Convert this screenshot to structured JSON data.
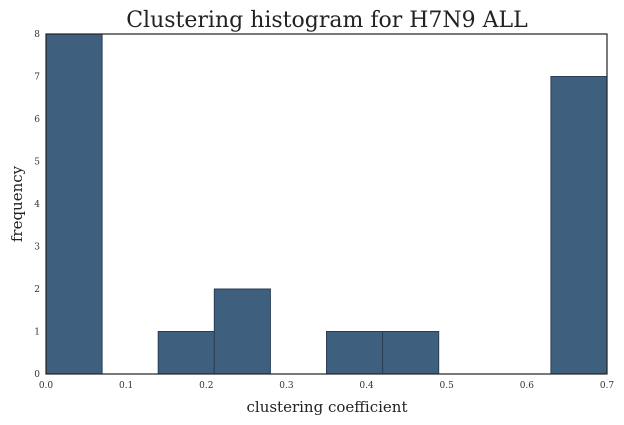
{
  "chart_data": {
    "type": "bar",
    "title": "Clustering histogram for H7N9  ALL",
    "xlabel": "clustering coefficient",
    "ylabel": "frequency",
    "xlim": [
      0.0,
      0.7
    ],
    "ylim": [
      0,
      8
    ],
    "xticks": [
      "0.0",
      "0.1",
      "0.2",
      "0.3",
      "0.4",
      "0.5",
      "0.6",
      "0.7"
    ],
    "yticks": [
      "0",
      "1",
      "2",
      "3",
      "4",
      "5",
      "6",
      "7",
      "8"
    ],
    "grid": false,
    "bin_edges": [
      0.0,
      0.07,
      0.14,
      0.21,
      0.28,
      0.35,
      0.42,
      0.49,
      0.56,
      0.63,
      0.7
    ],
    "values": [
      8,
      0,
      1,
      2,
      0,
      1,
      1,
      0,
      0,
      7
    ],
    "bar_color": "#3f5f7f"
  }
}
